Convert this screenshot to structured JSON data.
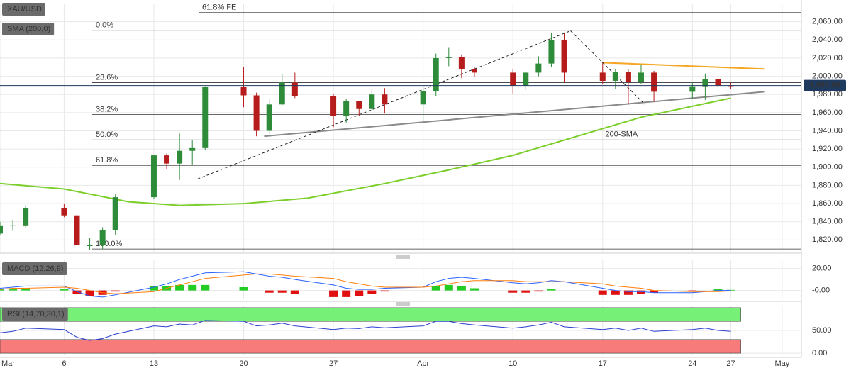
{
  "chart_data": [
    {
      "type": "candlestick",
      "legend": "XAU/USD",
      "x": [
        0,
        1,
        2,
        5,
        6,
        7,
        8,
        9,
        12,
        13,
        14,
        15,
        16,
        19,
        20,
        21,
        22,
        23,
        26,
        27,
        28,
        29,
        30,
        33,
        34,
        35,
        36,
        37,
        40,
        41,
        42,
        43,
        44,
        47,
        48,
        49,
        50,
        51,
        54,
        55,
        56,
        57
      ],
      "open": [
        1827,
        1836,
        1836,
        1855,
        1847,
        1814,
        1814,
        1831,
        1867,
        1913,
        1904,
        1918,
        1921,
        1988,
        1979,
        1940,
        1969,
        1993,
        1978,
        1956,
        1973,
        1964,
        1980,
        1969,
        1984,
        2020,
        2021,
        2008,
        2004,
        1990,
        2004,
        2014,
        2040,
        2004,
        1995,
        2005,
        1994,
        2004,
        1983,
        1989,
        1997,
        1990
      ],
      "high": [
        1840,
        1842,
        1858,
        1860,
        1850,
        1822,
        1834,
        1870,
        1913,
        1915,
        1937,
        1930,
        1989,
        2010,
        1982,
        1975,
        2003,
        2004,
        1981,
        1975,
        1973,
        1985,
        1987,
        1989,
        2025,
        2032,
        2024,
        2010,
        2008,
        2005,
        2022,
        2048,
        2048,
        2015,
        2008,
        2008,
        2013,
        2006,
        1993,
        2003,
        2009,
        1993
      ],
      "low": [
        1825,
        1830,
        1834,
        1845,
        1813,
        1809,
        1810,
        1825,
        1865,
        1898,
        1886,
        1903,
        1919,
        1966,
        1934,
        1936,
        1968,
        1976,
        1944,
        1949,
        1956,
        1962,
        1959,
        1950,
        1978,
        2011,
        1998,
        1999,
        1981,
        1985,
        2000,
        2010,
        1993,
        1991,
        1986,
        1969,
        1991,
        1972,
        1975,
        1974,
        1985,
        1986
      ],
      "close": [
        1836,
        1836,
        1855,
        1847,
        1814,
        1814,
        1831,
        1867,
        1913,
        1904,
        1918,
        1921,
        1988,
        1979,
        1940,
        1969,
        1993,
        1978,
        1956,
        1973,
        1964,
        1980,
        1969,
        1984,
        2020,
        2021,
        2008,
        2004,
        1990,
        2004,
        2014,
        2040,
        2004,
        1995,
        2005,
        1994,
        2004,
        1983,
        1989,
        1997,
        1990,
        1989.86
      ],
      "up_color": "#2e8b3a",
      "down_color": "#b71c1c",
      "series": [
        {
          "name": "SMA (200,0)",
          "color": "#7ccf2b",
          "x": [
            0,
            5,
            10,
            14,
            19,
            24,
            30,
            35,
            40,
            45,
            50,
            54,
            57
          ],
          "values": [
            1882,
            1876,
            1862,
            1858,
            1860,
            1866,
            1882,
            1897,
            1913,
            1934,
            1955,
            1967,
            1976
          ]
        }
      ],
      "last_price": {
        "value": 1989.86,
        "label": "1,989.86"
      },
      "fib_levels": [
        {
          "label": "61.8% FE",
          "value": 2070
        },
        {
          "label": "0.0%",
          "value": 2050.6
        },
        {
          "label": "23.6%",
          "value": 1993
        },
        {
          "label": "38.2%",
          "value": 1958
        },
        {
          "label": "50.0%",
          "value": 1930
        },
        {
          "label": "61.8%",
          "value": 1902
        },
        {
          "label": "100.0%",
          "value": 1810
        }
      ],
      "trendlines": [
        {
          "color": "#8a8a8a",
          "dashed": false,
          "x": [
            20.6,
            59.6
          ],
          "y": [
            1934,
            1983
          ]
        },
        {
          "color": "#f5a623",
          "dashed": false,
          "x": [
            47,
            59.6
          ],
          "y": [
            2015,
            2008
          ]
        },
        {
          "color": "#222222",
          "dashed": true,
          "x": [
            15.4,
            44.5
          ],
          "y": [
            1887,
            2050
          ]
        },
        {
          "color": "#222222",
          "dashed": true,
          "x": [
            44.5,
            50.3
          ],
          "y": [
            2050,
            1969
          ]
        }
      ],
      "annotations": [
        {
          "text": "200-SMA",
          "x": 47.2,
          "y": 1936,
          "color": "#7ccf2b"
        }
      ],
      "xlim": [
        0,
        62.5
      ],
      "xticks": [
        {
          "value": 0,
          "label": "Mar"
        },
        {
          "value": 5,
          "label": "6"
        },
        {
          "value": 12,
          "label": "13"
        },
        {
          "value": 19,
          "label": "20"
        },
        {
          "value": 26,
          "label": "27"
        },
        {
          "value": 33,
          "label": "Apr"
        },
        {
          "value": 40,
          "label": "10"
        },
        {
          "value": 47,
          "label": "17"
        },
        {
          "value": 54,
          "label": "24"
        },
        {
          "value": 57,
          "label": "27"
        },
        {
          "value": 61,
          "label": "May"
        }
      ],
      "ylim": [
        1807,
        2080
      ],
      "yticks": [
        {
          "value": 1820,
          "label": "1,820.00"
        },
        {
          "value": 1840,
          "label": "1,840.00"
        },
        {
          "value": 1860,
          "label": "1,860.00"
        },
        {
          "value": 1880,
          "label": "1,880.00"
        },
        {
          "value": 1900,
          "label": "1,900.00"
        },
        {
          "value": 1920,
          "label": "1,920.00"
        },
        {
          "value": 1940,
          "label": "1,940.00"
        },
        {
          "value": 1960,
          "label": "1,960.00"
        },
        {
          "value": 1980,
          "label": "1,980.00"
        },
        {
          "value": 2000,
          "label": "2,000.00"
        },
        {
          "value": 2020,
          "label": "2,020.00"
        },
        {
          "value": 2040,
          "label": "2,040.00"
        },
        {
          "value": 2060,
          "label": "2,060.00"
        }
      ],
      "grid": true
    },
    {
      "type": "macd",
      "legend": "MACD (12,26,9)",
      "x": [
        0,
        1,
        2,
        5,
        6,
        7,
        8,
        9,
        12,
        13,
        14,
        15,
        16,
        19,
        20,
        21,
        22,
        23,
        26,
        27,
        28,
        29,
        30,
        33,
        34,
        35,
        36,
        37,
        40,
        41,
        42,
        43,
        44,
        47,
        48,
        49,
        50,
        51,
        54,
        55,
        56,
        57
      ],
      "histogram": [
        1,
        1,
        2,
        1,
        -3,
        -5,
        -4,
        -1,
        4,
        4,
        5,
        5,
        5,
        3,
        0,
        -2,
        -2,
        -3,
        -6,
        -6,
        -5,
        -3,
        -1,
        0,
        4,
        5,
        4,
        2,
        -2,
        -2,
        -1,
        1,
        0,
        -4,
        -4,
        -4,
        -3,
        -2,
        -1,
        0,
        1,
        0.5
      ],
      "up_color": "#22cc22",
      "down_color": "#e01010",
      "series": [
        {
          "color": "#2962ff",
          "values": [
            2,
            3,
            4,
            4,
            -1,
            -5,
            -6,
            -4,
            3,
            6,
            10,
            13,
            16,
            17,
            15,
            13,
            12,
            10,
            5,
            2,
            1,
            1,
            2,
            3,
            8,
            11,
            12,
            11,
            7,
            6,
            7,
            9,
            8,
            2,
            0,
            -1,
            -1,
            -2,
            -2,
            -1,
            0,
            0
          ]
        },
        {
          "color": "#ff7f0e",
          "values": [
            1,
            2,
            2,
            3,
            2,
            0,
            -2,
            -3,
            -1,
            2,
            5,
            8,
            11,
            14,
            15,
            15,
            14,
            13,
            11,
            8,
            6,
            4,
            3,
            3,
            4,
            6,
            8,
            9,
            9,
            8,
            8,
            8,
            8,
            6,
            4,
            3,
            2,
            0,
            -1,
            -1,
            -1,
            -0.5
          ]
        }
      ],
      "xlim": [
        0,
        62.5
      ],
      "ylim": [
        -8,
        27.5
      ],
      "yticks": [
        {
          "value": 20,
          "label": "20.00"
        },
        {
          "value": 0,
          "label": "-0.00"
        }
      ],
      "grid": true
    },
    {
      "type": "line",
      "legend": "RSI (14,70,30,1)",
      "x": [
        0,
        1,
        2,
        5,
        6,
        7,
        8,
        9,
        12,
        13,
        14,
        15,
        16,
        19,
        20,
        21,
        22,
        23,
        26,
        27,
        28,
        29,
        30,
        33,
        34,
        35,
        36,
        37,
        40,
        41,
        42,
        43,
        44,
        47,
        48,
        49,
        50,
        51,
        54,
        55,
        56,
        57
      ],
      "values": [
        45,
        48,
        55,
        52,
        35,
        28,
        32,
        42,
        60,
        58,
        64,
        62,
        72,
        70,
        60,
        62,
        66,
        60,
        52,
        55,
        54,
        58,
        56,
        60,
        70,
        70,
        65,
        62,
        55,
        58,
        62,
        68,
        58,
        52,
        55,
        50,
        55,
        48,
        52,
        55,
        50,
        48
      ],
      "color": "#2a3fd0",
      "bands": [
        {
          "from": 70,
          "to": 100,
          "color": "#77f077"
        },
        {
          "from": 0,
          "to": 30,
          "color": "#f77b7b"
        }
      ],
      "xlim": [
        0,
        62.5
      ],
      "ylim": [
        -3,
        103
      ],
      "yticks": [
        {
          "value": 50,
          "label": "50.00"
        },
        {
          "value": 0,
          "label": "0.00"
        }
      ],
      "grid": true
    }
  ]
}
